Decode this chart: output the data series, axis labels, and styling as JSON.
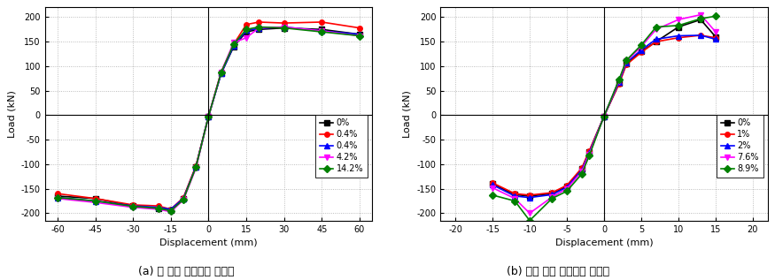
{
  "chart_a": {
    "title": "(a) 휨 기둥 포락곡선 그래프",
    "xlabel": "Displacement (mm)",
    "ylabel": "Load (kN)",
    "xlim": [
      -65,
      65
    ],
    "ylim": [
      -215,
      220
    ],
    "xticks": [
      -60,
      -45,
      -30,
      -15,
      0,
      15,
      30,
      45,
      60
    ],
    "yticks": [
      -200,
      -150,
      -100,
      -50,
      0,
      50,
      100,
      150,
      200
    ],
    "series": [
      {
        "label": "0%",
        "color": "#000000",
        "marker": "s",
        "x": [
          -60,
          -45,
          -30,
          -20,
          -15,
          -10,
          -5,
          0,
          5,
          10,
          15,
          20,
          30,
          45,
          60
        ],
        "y": [
          -165,
          -170,
          -185,
          -190,
          -193,
          -170,
          -105,
          -2,
          85,
          140,
          170,
          175,
          178,
          175,
          165
        ]
      },
      {
        "label": "0.4%",
        "color": "#ff0000",
        "marker": "o",
        "x": [
          -60,
          -45,
          -30,
          -20,
          -15,
          -10,
          -5,
          0,
          5,
          10,
          15,
          20,
          30,
          45,
          60
        ],
        "y": [
          -160,
          -170,
          -183,
          -185,
          -192,
          -168,
          -103,
          -2,
          88,
          145,
          185,
          190,
          188,
          190,
          178
        ]
      },
      {
        "label": "0.4%",
        "color": "#0000ff",
        "marker": "^",
        "x": [
          -60,
          -45,
          -30,
          -20,
          -15,
          -10,
          -5,
          0,
          5,
          10,
          15,
          20,
          30,
          45,
          60
        ],
        "y": [
          -168,
          -175,
          -185,
          -188,
          -192,
          -170,
          -105,
          -2,
          85,
          142,
          173,
          177,
          180,
          172,
          165
        ]
      },
      {
        "label": "4.2%",
        "color": "#ff00ff",
        "marker": "v",
        "x": [
          -60,
          -45,
          -30,
          -20,
          -15,
          -10,
          -5,
          0,
          5,
          10,
          15,
          20,
          30,
          45,
          60
        ],
        "y": [
          -170,
          -178,
          -188,
          -192,
          -197,
          -173,
          -108,
          -2,
          88,
          148,
          158,
          178,
          180,
          172,
          162
        ]
      },
      {
        "label": "14.2%",
        "color": "#008000",
        "marker": "D",
        "x": [
          -60,
          -45,
          -30,
          -20,
          -15,
          -10,
          -5,
          0,
          5,
          10,
          15,
          20,
          30,
          45,
          60
        ],
        "y": [
          -168,
          -175,
          -186,
          -190,
          -195,
          -172,
          -106,
          -2,
          87,
          145,
          175,
          180,
          178,
          170,
          162
        ]
      }
    ]
  },
  "chart_b": {
    "title": "(b) 전단 기둥 포락곡선 그래프",
    "xlabel": "Displacement (mm)",
    "ylabel": "Load (kN)",
    "xlim": [
      -22,
      22
    ],
    "ylim": [
      -215,
      220
    ],
    "xticks": [
      -20,
      -15,
      -10,
      -5,
      0,
      5,
      10,
      15,
      20
    ],
    "yticks": [
      -200,
      -150,
      -100,
      -50,
      0,
      50,
      100,
      150,
      200
    ],
    "series": [
      {
        "label": "0%",
        "color": "#000000",
        "marker": "s",
        "x": [
          -15,
          -12,
          -10,
          -7,
          -5,
          -3,
          -2,
          0,
          2,
          3,
          5,
          7,
          10,
          13,
          15
        ],
        "y": [
          -140,
          -162,
          -165,
          -160,
          -145,
          -110,
          -75,
          -2,
          65,
          105,
          130,
          150,
          180,
          195,
          160
        ]
      },
      {
        "label": "1%",
        "color": "#ff0000",
        "marker": "o",
        "x": [
          -15,
          -12,
          -10,
          -7,
          -5,
          -3,
          -2,
          0,
          2,
          3,
          5,
          7,
          10,
          13,
          15
        ],
        "y": [
          -138,
          -160,
          -163,
          -158,
          -143,
          -108,
          -73,
          -2,
          63,
          103,
          128,
          150,
          158,
          163,
          158
        ]
      },
      {
        "label": "2%",
        "color": "#0000ff",
        "marker": "^",
        "x": [
          -15,
          -12,
          -10,
          -7,
          -5,
          -3,
          -2,
          0,
          2,
          3,
          5,
          7,
          10,
          13,
          15
        ],
        "y": [
          -142,
          -165,
          -168,
          -162,
          -147,
          -112,
          -77,
          -2,
          67,
          107,
          133,
          155,
          162,
          163,
          155
        ]
      },
      {
        "label": "7.6%",
        "color": "#ff00ff",
        "marker": "v",
        "x": [
          -15,
          -12,
          -10,
          -7,
          -5,
          -3,
          -2,
          0,
          2,
          3,
          5,
          7,
          10,
          13,
          15
        ],
        "y": [
          -148,
          -170,
          -200,
          -167,
          -150,
          -115,
          -80,
          -2,
          70,
          110,
          140,
          175,
          195,
          205,
          170
        ]
      },
      {
        "label": "8.9%",
        "color": "#008000",
        "marker": "D",
        "x": [
          -15,
          -12,
          -10,
          -7,
          -5,
          -3,
          -2,
          0,
          2,
          3,
          5,
          7,
          10,
          13,
          15
        ],
        "y": [
          -163,
          -175,
          -215,
          -170,
          -155,
          -120,
          -83,
          -2,
          72,
          112,
          143,
          180,
          183,
          197,
          202
        ]
      }
    ]
  },
  "background_color": "#ffffff",
  "grid_color": "#aaaaaa",
  "title_fontsize": 9,
  "axis_label_fontsize": 8,
  "tick_fontsize": 7,
  "legend_fontsize": 7,
  "line_width": 1.2,
  "marker_size": 4
}
